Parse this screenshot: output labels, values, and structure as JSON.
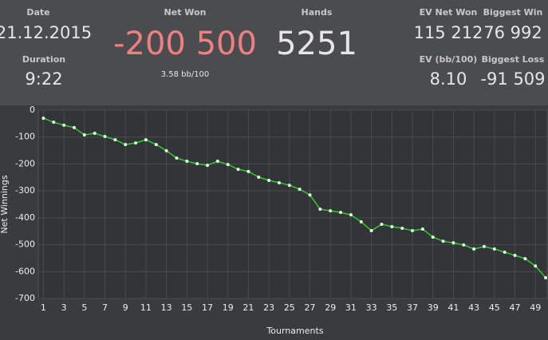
{
  "header": {
    "date": {
      "label": "Date",
      "value": "21.12.2015"
    },
    "duration": {
      "label": "Duration",
      "value": "9:22"
    },
    "net_won": {
      "label": "Net Won",
      "value": "-200 500",
      "sub": "3.58 bb/100"
    },
    "hands": {
      "label": "Hands",
      "value": "5251"
    },
    "ev_net_won": {
      "label": "EV Net Won",
      "value": "115 212"
    },
    "biggest_win": {
      "label": "Biggest Win",
      "value": "76 992"
    },
    "ev_bb": {
      "label": "EV (bb/100)",
      "value": "8.10"
    },
    "biggest_loss": {
      "label": "Biggest Loss",
      "value": "-91 509"
    }
  },
  "chart_data": {
    "type": "line",
    "x_label": "Tournaments",
    "y_label": "Net Winnings",
    "x": [
      1,
      2,
      3,
      4,
      5,
      6,
      7,
      8,
      9,
      10,
      11,
      12,
      13,
      14,
      15,
      16,
      17,
      18,
      19,
      20,
      21,
      22,
      23,
      24,
      25,
      26,
      27,
      28,
      29,
      30,
      31,
      32,
      33,
      34,
      35,
      36,
      37,
      38,
      39,
      40,
      41,
      42,
      43,
      44,
      45,
      46,
      47,
      48,
      49,
      50
    ],
    "series": [
      {
        "color": "#2ecc2e",
        "values": [
          -30,
          -45,
          -56,
          -65,
          -92,
          -86,
          -98,
          -110,
          -128,
          -122,
          -110,
          -128,
          -151,
          -178,
          -190,
          -199,
          -205,
          -190,
          -202,
          -220,
          -228,
          -249,
          -261,
          -270,
          -279,
          -294,
          -315,
          -368,
          -374,
          -380,
          -389,
          -415,
          -448,
          -424,
          -433,
          -439,
          -448,
          -442,
          -472,
          -487,
          -493,
          -501,
          -516,
          -507,
          -516,
          -528,
          -540,
          -552,
          -579,
          -623
        ]
      }
    ],
    "xlim": [
      0.5,
      50.15
    ],
    "ylim": [
      -700,
      0
    ],
    "xticks": [
      1,
      3,
      5,
      7,
      9,
      11,
      13,
      15,
      17,
      19,
      21,
      23,
      25,
      27,
      29,
      31,
      33,
      35,
      37,
      39,
      41,
      43,
      45,
      47,
      49
    ],
    "yticks": [
      0,
      -100,
      -200,
      -300,
      -400,
      -500,
      -600,
      -700
    ],
    "grid": true
  }
}
